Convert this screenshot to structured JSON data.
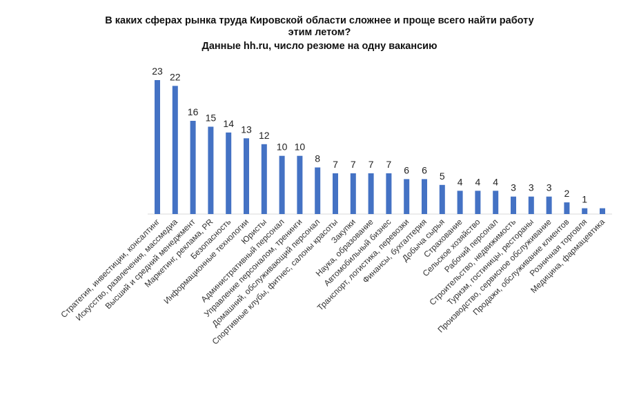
{
  "chart_data": {
    "type": "bar",
    "title_line1": "В каких сферах рынка труда Кировской области сложнее и проще всего найти работу",
    "title_line2": "этим летом?",
    "subtitle": "Данные hh.ru, число резюме на одну вакансию",
    "categories": [
      "Стратегия, инвестиции, консалтинг",
      "Искусство, развлечения, массмедиа",
      "Высший и средний менеджмент",
      "Маркетинг, реклама, PR",
      "Безопасность",
      "Информационные технологии",
      "Юристы",
      "Административный персонал",
      "Управление персоналом, тренинги",
      "Домашний, обслуживающий персонал",
      "Спортивные клубы, фитнес, салоны красоты",
      "Закупки",
      "Наука, образование",
      "Автомобильный бизнес",
      "Транспорт, логистика, перевозки",
      "Финансы, бухгалтерия",
      "Добыча сырья",
      "Страхование",
      "Сельское хозяйство",
      "Рабочий персонал",
      "Строительство, недвижимость",
      "Туризм, гостиницы, рестораны",
      "Производство, сервисное обслуживание",
      "Продажи, обслуживание клиентов",
      "Розничная торговля",
      "Медицина, фармацевтика"
    ],
    "values": [
      23,
      22,
      16,
      15,
      14,
      13,
      12,
      10,
      10,
      8,
      7,
      7,
      7,
      7,
      6,
      6,
      5,
      4,
      4,
      4,
      3,
      3,
      3,
      2,
      1,
      1
    ],
    "data_labels": [
      "23",
      "22",
      "16",
      "15",
      "14",
      "13",
      "12",
      "10",
      "10",
      "8",
      "7",
      "7",
      "7",
      "7",
      "6",
      "6",
      "5",
      "4",
      "4",
      "4",
      "3",
      "3",
      "3",
      "2",
      "1",
      ""
    ],
    "ylim": [
      0,
      23.5
    ],
    "bar_color": "#4472C4",
    "grid": false,
    "legend": "none"
  }
}
